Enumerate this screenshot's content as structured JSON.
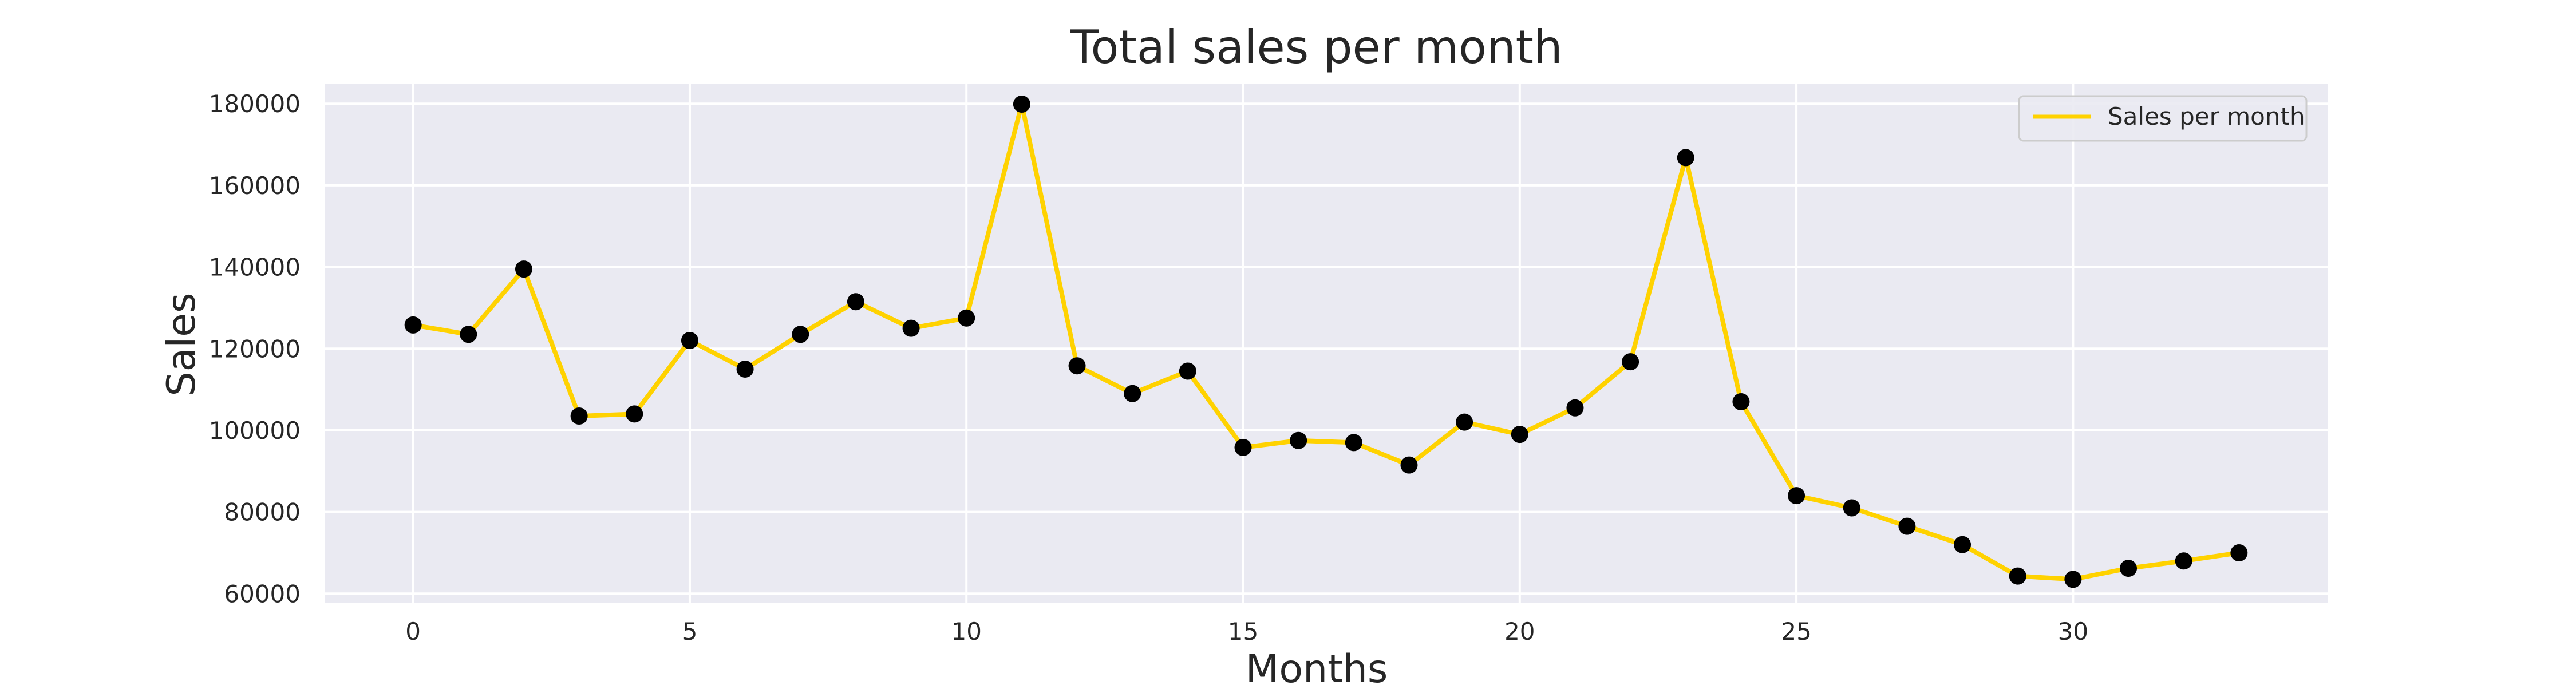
{
  "chart_data": {
    "type": "line",
    "title": "Total sales per month",
    "xlabel": "Months",
    "ylabel": "Sales",
    "x": [
      0,
      1,
      2,
      3,
      4,
      5,
      6,
      7,
      8,
      9,
      10,
      11,
      12,
      13,
      14,
      15,
      16,
      17,
      18,
      19,
      20,
      21,
      22,
      23,
      24,
      25,
      26,
      27,
      28,
      29,
      30,
      31,
      32,
      33
    ],
    "series": [
      {
        "name": "Sales per month",
        "color": "#FFD200",
        "marker_color": "#000000",
        "values": [
          125800,
          123500,
          139500,
          103500,
          104000,
          122000,
          115000,
          123500,
          131500,
          125000,
          127500,
          179900,
          115800,
          109000,
          114500,
          95800,
          97500,
          97000,
          91500,
          102000,
          99000,
          105500,
          116800,
          166800,
          107000,
          84000,
          81000,
          76500,
          72000,
          64300,
          63500,
          66200,
          68000,
          70000
        ]
      }
    ],
    "xlim": [
      -1.6,
      34.6
    ],
    "ylim": [
      57800,
      184800
    ],
    "xticks": [
      0,
      5,
      10,
      15,
      20,
      25,
      30
    ],
    "yticks": [
      60000,
      80000,
      100000,
      120000,
      140000,
      160000,
      180000
    ],
    "grid": true,
    "legend_position": "top-right",
    "colors": {
      "plot_background": "#EAEAF2",
      "grid": "#FFFFFF",
      "line": "#FFD200",
      "marker": "#000000",
      "text": "#262626"
    }
  }
}
